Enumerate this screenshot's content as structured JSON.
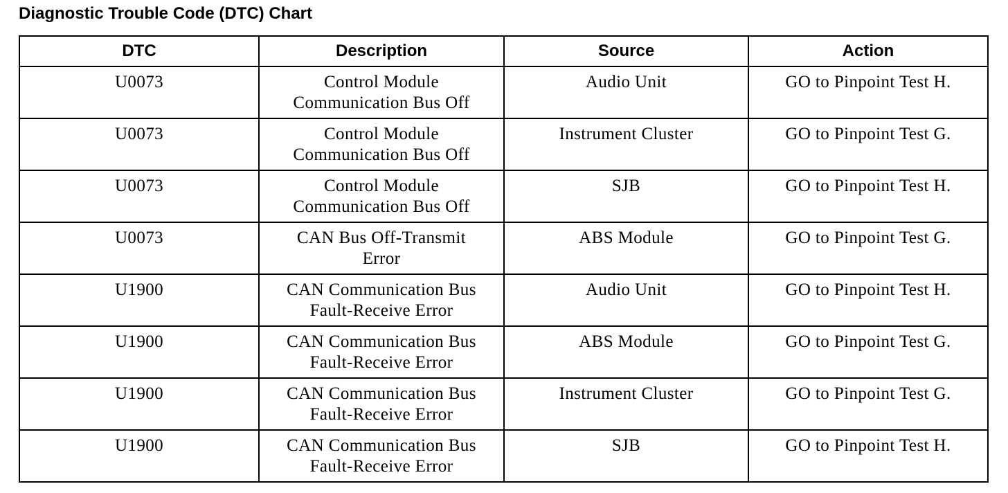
{
  "title": "Diagnostic Trouble Code (DTC) Chart",
  "columns": [
    "DTC",
    "Description",
    "Source",
    "Action"
  ],
  "rows": [
    {
      "dtc": "U0073",
      "description": [
        "Control Module",
        "Communication Bus Off"
      ],
      "source": "Audio Unit",
      "action": "GO to Pinpoint Test H."
    },
    {
      "dtc": "U0073",
      "description": [
        "Control Module",
        "Communication Bus Off"
      ],
      "source": "Instrument Cluster",
      "action": "GO to Pinpoint Test G."
    },
    {
      "dtc": "U0073",
      "description": [
        "Control Module",
        "Communication Bus Off"
      ],
      "source": "SJB",
      "action": "GO to Pinpoint Test H."
    },
    {
      "dtc": "U0073",
      "description": [
        "CAN Bus Off-Transmit",
        "Error"
      ],
      "source": "ABS Module",
      "action": "GO to Pinpoint Test G."
    },
    {
      "dtc": "U1900",
      "description": [
        "CAN Communication Bus",
        "Fault-Receive Error"
      ],
      "source": "Audio Unit",
      "action": "GO to Pinpoint Test H."
    },
    {
      "dtc": "U1900",
      "description": [
        "CAN Communication Bus",
        "Fault-Receive Error"
      ],
      "source": "ABS Module",
      "action": "GO to Pinpoint Test G."
    },
    {
      "dtc": "U1900",
      "description": [
        "CAN Communication Bus",
        "Fault-Receive Error"
      ],
      "source": "Instrument Cluster",
      "action": "GO to Pinpoint Test G."
    },
    {
      "dtc": "U1900",
      "description": [
        "CAN Communication Bus",
        "Fault-Receive Error"
      ],
      "source": "SJB",
      "action": "GO to Pinpoint Test H."
    }
  ]
}
